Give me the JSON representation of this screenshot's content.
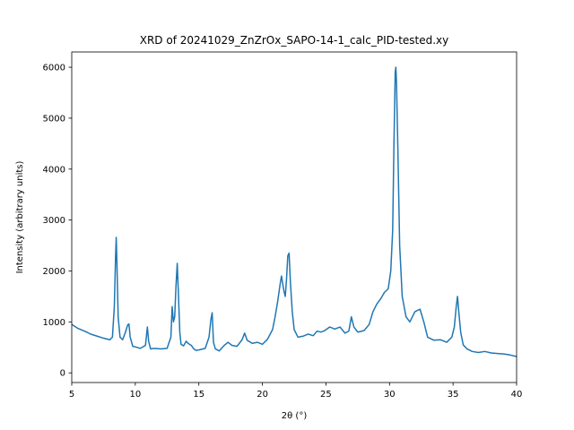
{
  "chart_data": {
    "type": "line",
    "title": "XRD of 20241029_ZnZrOx_SAPO-14-1_calc_PID-tested.xy",
    "xlabel": "2θ (°)",
    "ylabel": "Intensity (arbitrary units)",
    "xlim": [
      5,
      40
    ],
    "ylim": [
      -190,
      6300
    ],
    "xticks": [
      5,
      10,
      15,
      20,
      25,
      30,
      35,
      40
    ],
    "yticks": [
      0,
      1000,
      2000,
      3000,
      4000,
      5000,
      6000
    ],
    "grid": false,
    "legend": "none",
    "series": [
      {
        "color": "#1f77b4",
        "x": [
          5.0,
          5.5,
          6.0,
          6.5,
          7.0,
          7.5,
          8.0,
          8.2,
          8.35,
          8.45,
          8.5,
          8.55,
          8.65,
          8.8,
          9.0,
          9.2,
          9.4,
          9.5,
          9.6,
          9.8,
          10.0,
          10.4,
          10.8,
          10.95,
          11.05,
          11.2,
          11.5,
          12.0,
          12.5,
          12.8,
          12.9,
          13.0,
          13.1,
          13.2,
          13.3,
          13.4,
          13.5,
          13.6,
          13.8,
          14.0,
          14.2,
          14.4,
          14.6,
          14.8,
          15.0,
          15.5,
          15.8,
          15.95,
          16.05,
          16.15,
          16.3,
          16.6,
          17.0,
          17.3,
          17.6,
          18.0,
          18.4,
          18.6,
          18.8,
          19.2,
          19.6,
          20.0,
          20.4,
          20.8,
          21.0,
          21.2,
          21.4,
          21.5,
          21.6,
          21.7,
          21.8,
          21.9,
          22.0,
          22.1,
          22.2,
          22.35,
          22.5,
          22.8,
          23.2,
          23.6,
          24.0,
          24.3,
          24.6,
          24.9,
          25.3,
          25.7,
          26.1,
          26.5,
          26.8,
          27.0,
          27.2,
          27.5,
          28.0,
          28.4,
          28.7,
          29.0,
          29.3,
          29.6,
          29.9,
          30.1,
          30.25,
          30.35,
          30.45,
          30.5,
          30.55,
          30.65,
          30.8,
          31.0,
          31.3,
          31.6,
          32.0,
          32.4,
          32.7,
          33.0,
          33.5,
          34.0,
          34.5,
          34.9,
          35.1,
          35.25,
          35.35,
          35.45,
          35.6,
          35.8,
          36.1,
          36.5,
          37.0,
          37.5,
          38.0,
          38.5,
          39.0,
          39.5,
          40.0
        ],
        "y": [
          950,
          870,
          820,
          760,
          720,
          680,
          650,
          700,
          1300,
          2300,
          2660,
          2200,
          1100,
          700,
          650,
          780,
          940,
          960,
          700,
          520,
          510,
          480,
          540,
          900,
          620,
          470,
          480,
          470,
          480,
          700,
          1300,
          1000,
          1100,
          1700,
          2150,
          1500,
          800,
          560,
          530,
          620,
          570,
          540,
          470,
          440,
          450,
          480,
          700,
          1050,
          1180,
          600,
          470,
          430,
          540,
          600,
          540,
          520,
          650,
          780,
          640,
          580,
          600,
          560,
          660,
          850,
          1100,
          1400,
          1750,
          1900,
          1750,
          1600,
          1500,
          1850,
          2300,
          2350,
          1800,
          1200,
          850,
          700,
          720,
          760,
          730,
          820,
          800,
          830,
          900,
          860,
          900,
          780,
          820,
          1100,
          900,
          800,
          830,
          950,
          1200,
          1350,
          1450,
          1580,
          1650,
          2000,
          2800,
          4500,
          5900,
          6000,
          5700,
          4500,
          2500,
          1500,
          1100,
          1000,
          1200,
          1250,
          1000,
          700,
          640,
          650,
          600,
          700,
          900,
          1300,
          1500,
          1200,
          800,
          550,
          470,
          420,
          400,
          420,
          390,
          380,
          370,
          350,
          320
        ]
      }
    ]
  }
}
